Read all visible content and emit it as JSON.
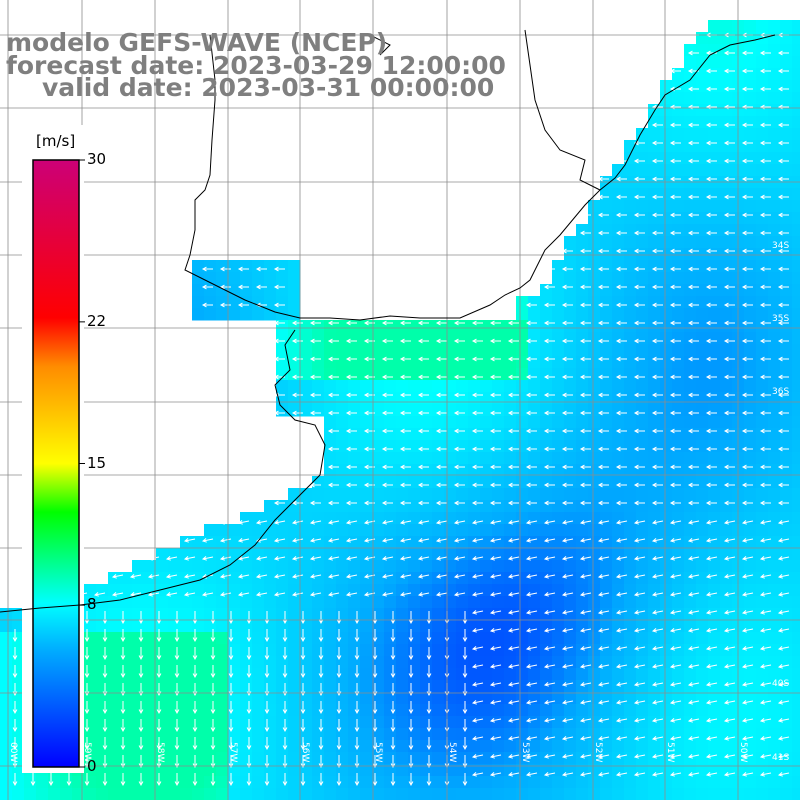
{
  "title": {
    "line1": "modelo GEFS-WAVE (NCEP)",
    "line2": "forecast date: 2023-03-29 12:00:00",
    "line3": "valid date: 2023-03-31 00:00:00"
  },
  "colorbar": {
    "unit": "[m/s]",
    "ticks": [
      {
        "label": "30",
        "value": 30
      },
      {
        "label": "22",
        "value": 22
      },
      {
        "label": "15",
        "value": 15
      },
      {
        "label": "8",
        "value": 8
      },
      {
        "label": "0",
        "value": 0
      }
    ],
    "range": [
      0,
      30
    ],
    "colors": [
      "#0000ff",
      "#00aaff",
      "#00ffff",
      "#00ff00",
      "#ffff00",
      "#ff8c00",
      "#ff0000",
      "#cc0077"
    ]
  },
  "map": {
    "region": "Rio de la Plata / South Atlantic",
    "lat_labels": [
      "34S",
      "35S",
      "36S",
      "40S",
      "41S"
    ],
    "lon_labels": [
      "60W",
      "59W",
      "58W",
      "57W",
      "56W",
      "55W",
      "54W",
      "53W",
      "52W",
      "51W",
      "50W"
    ],
    "ocean_speed_range": [
      2,
      10
    ],
    "wind_direction": "mostly easterly",
    "land_color": "#ffffff",
    "grid_color": "#8c8c8c",
    "coast_color": "#000000",
    "arrow_color": "#ffffff"
  }
}
